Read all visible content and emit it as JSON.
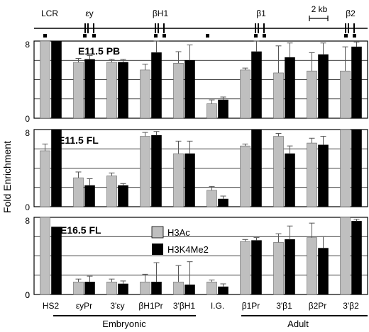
{
  "chart_data": {
    "type": "bar",
    "ylabel": "Fold Enrichment",
    "categories": [
      "HS2",
      "εyPr",
      "3'εy",
      "βH1Pr",
      "3'βH1",
      "I.G.",
      "β1Pr",
      "3'β1",
      "β2Pr",
      "3'β2"
    ],
    "group_labels": [
      {
        "label": "Embryonic",
        "from": 1,
        "to": 4
      },
      {
        "label": "Adult",
        "from": 6,
        "to": 9
      }
    ],
    "legend": {
      "placement": "inside-bottom-panel",
      "entries": [
        {
          "name": "H3Ac",
          "color": "#bfbfbf"
        },
        {
          "name": "H3K4Me2",
          "color": "#000000"
        }
      ]
    },
    "colors": {
      "h3ac": "#bfbfbf",
      "h3k4me2": "#000000",
      "grid": "#000000"
    },
    "gene_map": {
      "labels": [
        "LCR",
        "εy",
        "βH1",
        "β1",
        "2 kb",
        "β2"
      ]
    },
    "panels": [
      {
        "title": "E11.5 PB",
        "ylim": [
          0,
          8
        ],
        "yticks": [
          "0",
          "8"
        ],
        "grid": true,
        "series": [
          {
            "name": "H3Ac",
            "values": [
              8.0,
              5.8,
              5.8,
              5.0,
              5.7,
              1.5,
              5.0,
              4.7,
              4.9,
              4.9
            ],
            "errors": [
              0.0,
              0.4,
              0.3,
              0.6,
              1.2,
              0.4,
              0.2,
              2.8,
              1.9,
              2.5
            ]
          },
          {
            "name": "H3K4Me2",
            "values": [
              8.0,
              6.1,
              5.8,
              6.8,
              6.0,
              1.9,
              6.9,
              6.3,
              6.6,
              7.4
            ],
            "errors": [
              0.0,
              0.4,
              0.3,
              1.2,
              1.6,
              0.3,
              1.2,
              1.5,
              1.2,
              0.5
            ]
          }
        ]
      },
      {
        "title": "E11.5 FL",
        "ylim": [
          0,
          8
        ],
        "yticks": [
          "0",
          "8"
        ],
        "grid": true,
        "series": [
          {
            "name": "H3Ac",
            "values": [
              5.8,
              3.0,
              3.2,
              7.3,
              5.5,
              1.7,
              6.3,
              7.3,
              6.6,
              8.0
            ],
            "errors": [
              0.7,
              0.6,
              0.3,
              0.4,
              1.3,
              0.4,
              0.2,
              0.3,
              0.5,
              0.0
            ]
          },
          {
            "name": "H3K4Me2",
            "values": [
              8.0,
              2.2,
              2.2,
              7.4,
              5.5,
              0.8,
              8.0,
              5.5,
              6.4,
              8.0
            ],
            "errors": [
              0.0,
              0.7,
              0.2,
              0.4,
              1.3,
              0.3,
              0.0,
              0.8,
              0.9,
              0.0
            ]
          }
        ]
      },
      {
        "title": "E16.5 FL",
        "ylim": [
          0,
          8
        ],
        "yticks": [
          "0",
          "8"
        ],
        "grid": true,
        "series": [
          {
            "name": "H3Ac",
            "values": [
              8.0,
              1.3,
              1.3,
              1.3,
              1.3,
              1.3,
              5.5,
              5.4,
              5.9,
              8.0
            ],
            "errors": [
              0.0,
              0.3,
              0.3,
              0.8,
              1.7,
              0.2,
              0.2,
              0.9,
              1.5,
              0.0
            ]
          },
          {
            "name": "H3K4Me2",
            "values": [
              7.0,
              1.3,
              1.1,
              1.3,
              1.0,
              0.8,
              5.6,
              5.7,
              4.8,
              7.6
            ],
            "errors": [
              0.0,
              0.6,
              0.3,
              2.0,
              2.4,
              0.3,
              0.3,
              1.4,
              1.2,
              0.2
            ]
          }
        ]
      }
    ]
  }
}
